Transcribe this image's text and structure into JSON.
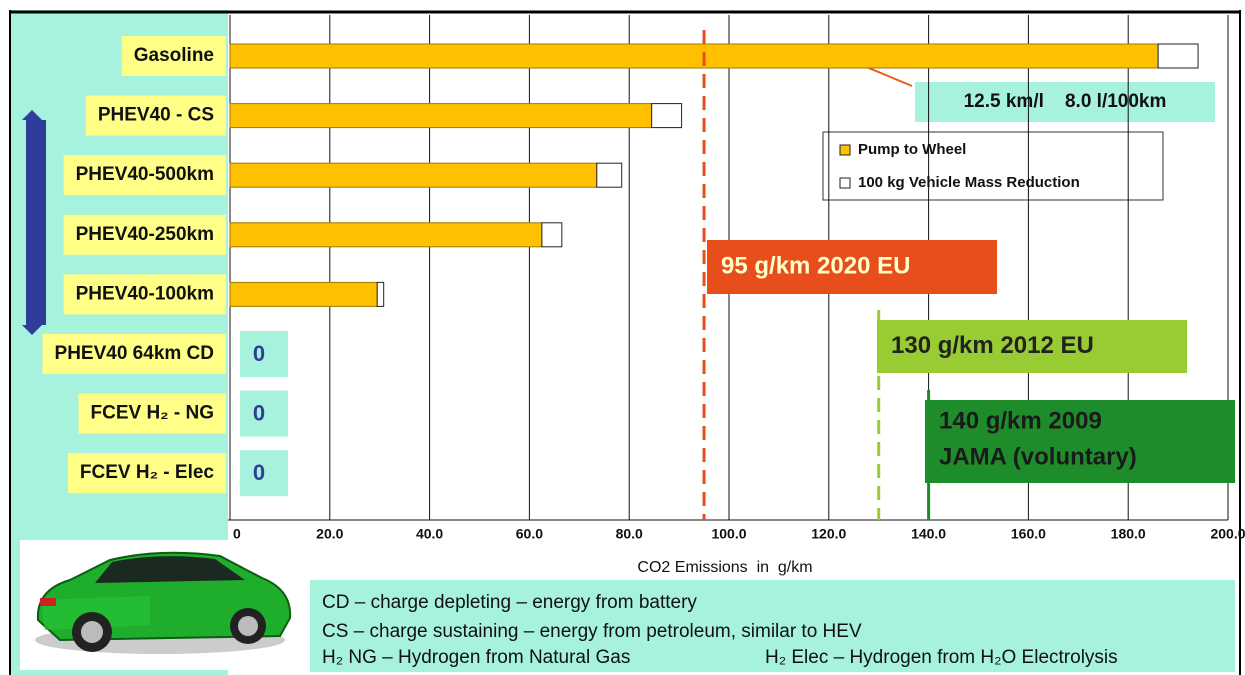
{
  "chart_data": {
    "type": "bar",
    "orientation": "horizontal",
    "stacked": true,
    "categories": [
      "Gasoline",
      "PHEV40 - CS",
      "PHEV40-500km",
      "PHEV40-250km",
      "PHEV40-100km",
      "PHEV40 64km CD",
      "FCEV H₂ - NG",
      "FCEV H₂ - Elec"
    ],
    "series": [
      {
        "name": "Pump to Wheel",
        "color": "#ffc000",
        "values": [
          186,
          84.5,
          73.5,
          62.5,
          29.5,
          0,
          0,
          0
        ]
      },
      {
        "name": "100 kg Vehicle Mass Reduction",
        "color": "#ffffff",
        "values": [
          8,
          6,
          5,
          4,
          1.3,
          0,
          0,
          0
        ]
      }
    ],
    "xlabel": "CO2 Emissions  in  g/km",
    "xlim": [
      0,
      200
    ],
    "xticks": [
      0,
      {
        "value": 20,
        "label": "20.0"
      },
      {
        "value": 40,
        "label": "40.0"
      },
      {
        "value": 60,
        "label": "60.0"
      },
      {
        "value": 80,
        "label": "80.0"
      },
      {
        "value": 100,
        "label": "100.0"
      },
      {
        "value": 120,
        "label": "120.0"
      },
      {
        "value": 140,
        "label": "140.0"
      },
      {
        "value": 160,
        "label": "160.0"
      },
      {
        "value": 180,
        "label": "180.0"
      },
      {
        "value": 200,
        "label": "200.0"
      }
    ],
    "grid": true,
    "legend": "upper right",
    "reference_lines": [
      {
        "value": 95,
        "label": [
          "95 g/km 2020 EU"
        ],
        "color": "#e84e1b",
        "text_color": "#ffffcc",
        "style": "dashed"
      },
      {
        "value": 130,
        "label": [
          "130 g/km 2012 EU"
        ],
        "color": "#99cc33",
        "text_color": "#222222",
        "style": "dashed"
      },
      {
        "value": 140,
        "label": [
          "140 g/km 2009",
          "JAMA (voluntary)"
        ],
        "color": "#1e8c2a",
        "text_color": "#1a1a1a",
        "style": "solid"
      }
    ],
    "annotation": "12.5 km/l    8.0 l/100km",
    "notes": [
      "CD – charge depleting – energy from battery",
      "CS – charge sustaining – energy from petroleum, similar to HEV",
      "H₂ NG – Hydrogen from Natural Gas",
      "H₂ Elec – Hydrogen from H₂O Electrolysis"
    ]
  }
}
